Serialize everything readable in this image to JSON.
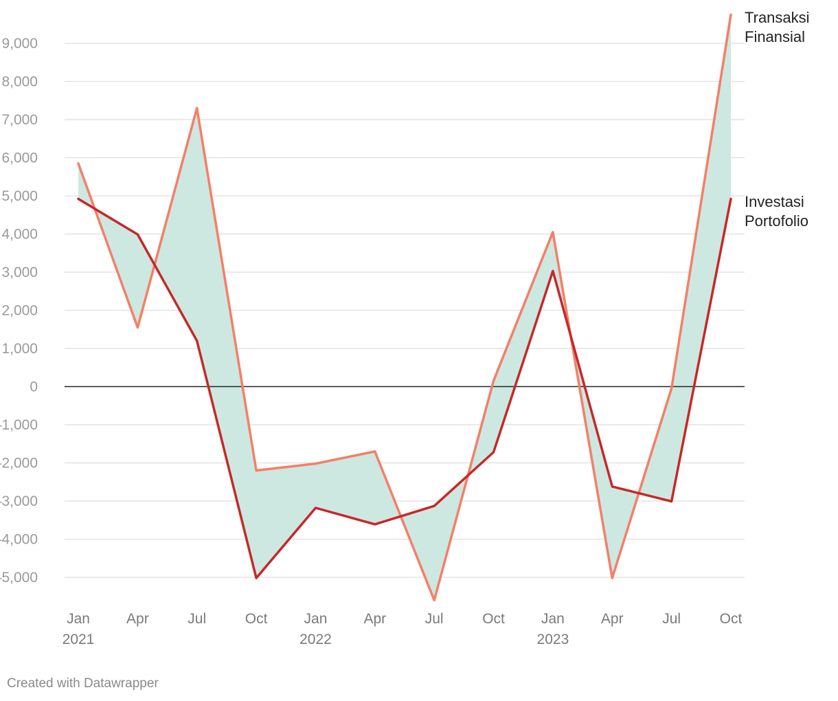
{
  "chart_data": {
    "type": "line",
    "x": [
      "Jan 2021",
      "Apr 2021",
      "Jul 2021",
      "Oct 2021",
      "Jan 2022",
      "Apr 2022",
      "Jul 2022",
      "Oct 2022",
      "Jan 2023",
      "Apr 2023",
      "Jul 2023",
      "Oct 2023"
    ],
    "x_tick_labels": [
      {
        "month": "Jan",
        "year": "2021"
      },
      {
        "month": "Apr",
        "year": ""
      },
      {
        "month": "Jul",
        "year": ""
      },
      {
        "month": "Oct",
        "year": ""
      },
      {
        "month": "Jan",
        "year": "2022"
      },
      {
        "month": "Apr",
        "year": ""
      },
      {
        "month": "Jul",
        "year": ""
      },
      {
        "month": "Oct",
        "year": ""
      },
      {
        "month": "Jan",
        "year": "2023"
      },
      {
        "month": "Apr",
        "year": ""
      },
      {
        "month": "Jul",
        "year": ""
      },
      {
        "month": "Oct",
        "year": ""
      }
    ],
    "series": [
      {
        "name": "Transaksi Finansial",
        "label_lines": [
          "Transaksi",
          "Finansial"
        ],
        "color": "#f47f68",
        "values": [
          5850,
          1550,
          7300,
          -2200,
          -2020,
          -1700,
          -5600,
          150,
          4050,
          -5020,
          -50,
          9750
        ]
      },
      {
        "name": "Investasi Portofolio",
        "label_lines": [
          "Investasi",
          "Portofolio"
        ],
        "color": "#c62828",
        "values": [
          4920,
          3990,
          1200,
          -5020,
          -3180,
          -3610,
          -3130,
          -1720,
          3030,
          -2620,
          -3010,
          4920
        ]
      }
    ],
    "fill_between_color": "#cde8e1",
    "ylim": [
      -5800,
      9900
    ],
    "y_ticks": [
      9000,
      8000,
      7000,
      6000,
      5000,
      4000,
      3000,
      2000,
      1000,
      0,
      -1000,
      -2000,
      -3000,
      -4000,
      -5000
    ],
    "y_tick_labels": [
      "9,000",
      "8,000",
      "7,000",
      "6,000",
      "5,000",
      "4,000",
      "3,000",
      "2,000",
      "1,000",
      "0",
      "–1,000",
      "–2,000",
      "–3,000",
      "–4,000",
      "–5,000"
    ],
    "grid": true,
    "title": "",
    "xlabel": "",
    "ylabel": ""
  },
  "footer": {
    "credit": "Created with Datawrapper"
  }
}
